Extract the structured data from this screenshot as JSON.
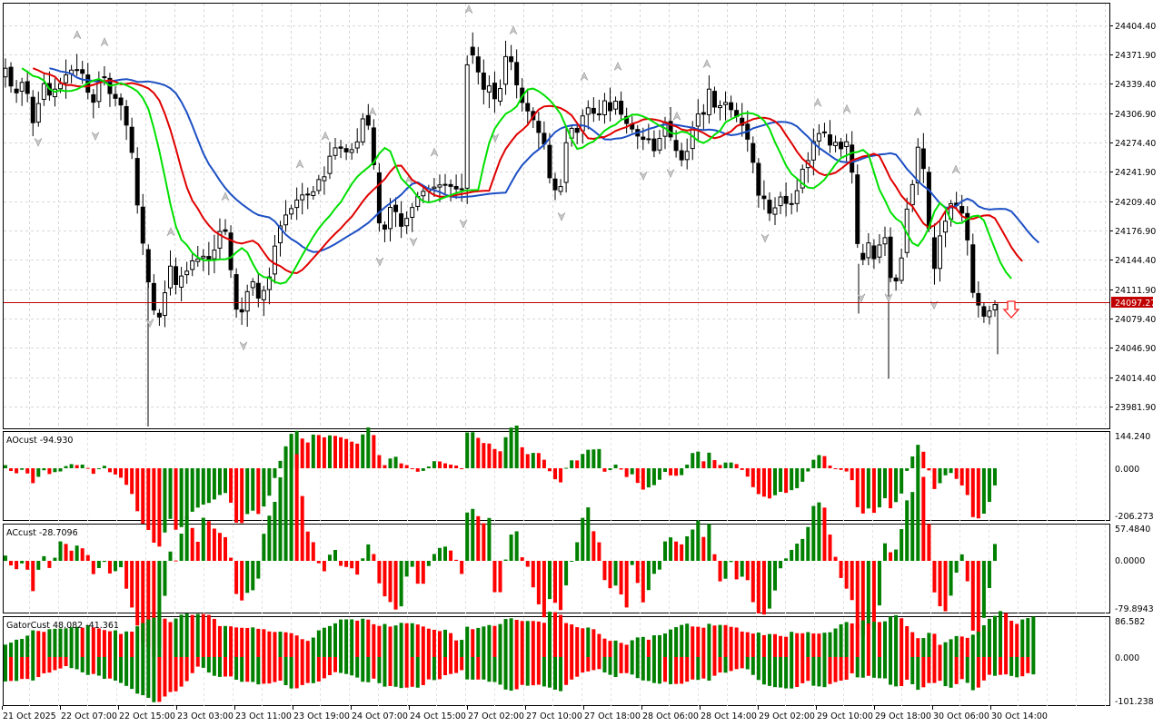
{
  "symbol_price": {
    "current": "24097.27",
    "line_color": "#c00000",
    "badge_color": "#c00000"
  },
  "main": {
    "y_ticks": [
      "24404.40",
      "24371.90",
      "24339.40",
      "24306.90",
      "24274.40",
      "24241.90",
      "24209.40",
      "24176.90",
      "24144.40",
      "24111.90",
      "24079.40",
      "24046.90",
      "24014.40",
      "23981.90"
    ],
    "ylim": [
      23959,
      24427
    ],
    "alligator_colors": {
      "jaw": "#1c4fc4",
      "teeth": "#e00000",
      "lips": "#00e000"
    },
    "signal_arrow": "down-arrow-red"
  },
  "x_labels": [
    "21 Oct 2025",
    "22 Oct 07:00",
    "22 Oct 15:00",
    "23 Oct 03:00",
    "23 Oct 11:00",
    "23 Oct 19:00",
    "24 Oct 07:00",
    "24 Oct 15:00",
    "27 Oct 02:00",
    "27 Oct 10:00",
    "27 Oct 18:00",
    "28 Oct 06:00",
    "28 Oct 14:00",
    "29 Oct 02:00",
    "29 Oct 10:00",
    "29 Oct 18:00",
    "30 Oct 06:00",
    "30 Oct 14:00"
  ],
  "ao": {
    "title": "AOcust -94.930",
    "ticks": [
      "144.240",
      "0.000",
      "-206.273"
    ],
    "ylim": [
      -206.273,
      144.24
    ],
    "up_color": "#008000",
    "down_color": "#ff0000"
  },
  "ac": {
    "title": "ACcust -28.7096",
    "ticks": [
      "57.4840",
      "0.0000",
      "-79.8943"
    ],
    "ylim": [
      -79.8943,
      57.484
    ]
  },
  "gator": {
    "title": "GatorCust 48.082 -41.361",
    "ticks": [
      "86.582",
      "0.000",
      "-101.238"
    ],
    "ylim": [
      -101.238,
      86.582
    ]
  },
  "chart_data": [
    {
      "type": "candlestick",
      "title": "",
      "x_tick_labels": [
        "21 Oct 2025",
        "22 Oct 07:00",
        "22 Oct 15:00",
        "23 Oct 03:00",
        "23 Oct 11:00",
        "23 Oct 19:00",
        "24 Oct 07:00",
        "24 Oct 15:00",
        "27 Oct 02:00",
        "27 Oct 10:00",
        "27 Oct 18:00",
        "28 Oct 06:00",
        "28 Oct 14:00",
        "29 Oct 02:00",
        "29 Oct 10:00",
        "29 Oct 18:00",
        "30 Oct 06:00",
        "30 Oct 14:00"
      ],
      "ylim": [
        23959,
        24427
      ],
      "current_price": 24097.27,
      "price_path": [
        [
          0,
          24346
        ],
        [
          8,
          24360
        ],
        [
          15,
          24320
        ],
        [
          20,
          24335
        ],
        [
          25,
          24342
        ],
        [
          30,
          24330
        ],
        [
          35,
          24295
        ],
        [
          40,
          24300
        ],
        [
          45,
          24338
        ],
        [
          50,
          24340
        ],
        [
          55,
          24325
        ],
        [
          60,
          24333
        ],
        [
          65,
          24337
        ],
        [
          70,
          24345
        ],
        [
          75,
          24353
        ],
        [
          80,
          24355
        ],
        [
          85,
          24355
        ],
        [
          90,
          24353
        ],
        [
          95,
          24338
        ],
        [
          100,
          24315
        ],
        [
          105,
          24322
        ],
        [
          110,
          24349
        ],
        [
          115,
          24347
        ],
        [
          120,
          24330
        ],
        [
          125,
          24322
        ],
        [
          130,
          24325
        ],
        [
          135,
          24310
        ],
        [
          140,
          24290
        ],
        [
          145,
          24265
        ],
        [
          150,
          24210
        ],
        [
          155,
          24190
        ],
        [
          160,
          24130
        ],
        [
          165,
          24115
        ],
        [
          170,
          24085
        ],
        [
          175,
          24080
        ],
        [
          180,
          24095
        ],
        [
          185,
          24140
        ],
        [
          190,
          24135
        ],
        [
          195,
          24110
        ],
        [
          200,
          24128
        ],
        [
          205,
          24130
        ],
        [
          210,
          24145
        ],
        [
          215,
          24140
        ],
        [
          220,
          24150
        ],
        [
          225,
          24148
        ],
        [
          230,
          24145
        ],
        [
          235,
          24152
        ],
        [
          240,
          24170
        ],
        [
          245,
          24185
        ],
        [
          250,
          24170
        ],
        [
          255,
          24125
        ],
        [
          260,
          24090
        ],
        [
          265,
          24085
        ],
        [
          270,
          24093
        ],
        [
          275,
          24130
        ],
        [
          280,
          24115
        ],
        [
          285,
          24100
        ],
        [
          290,
          24110
        ],
        [
          295,
          24118
        ],
        [
          300,
          24145
        ],
        [
          305,
          24175
        ],
        [
          310,
          24185
        ],
        [
          315,
          24195
        ],
        [
          320,
          24200
        ],
        [
          325,
          24210
        ],
        [
          330,
          24212
        ],
        [
          335,
          24220
        ],
        [
          340,
          24215
        ],
        [
          345,
          24220
        ],
        [
          350,
          24235
        ],
        [
          355,
          24225
        ],
        [
          360,
          24255
        ],
        [
          365,
          24262
        ],
        [
          370,
          24270
        ],
        [
          375,
          24268
        ],
        [
          380,
          24265
        ],
        [
          385,
          24260
        ],
        [
          390,
          24275
        ],
        [
          395,
          24275
        ],
        [
          400,
          24305
        ],
        [
          405,
          24295
        ],
        [
          410,
          24270
        ],
        [
          415,
          24195
        ],
        [
          420,
          24175
        ],
        [
          425,
          24180
        ],
        [
          430,
          24205
        ],
        [
          435,
          24200
        ],
        [
          440,
          24180
        ],
        [
          445,
          24185
        ],
        [
          450,
          24195
        ],
        [
          455,
          24205
        ],
        [
          460,
          24215
        ],
        [
          465,
          24220
        ],
        [
          470,
          24222
        ],
        [
          475,
          24225
        ],
        [
          480,
          24225
        ],
        [
          485,
          24228
        ],
        [
          490,
          24228
        ],
        [
          495,
          24226
        ],
        [
          500,
          24225
        ],
        [
          505,
          24220
        ],
        [
          510,
          24225
        ],
        [
          515,
          24386
        ],
        [
          520,
          24372
        ],
        [
          525,
          24355
        ],
        [
          530,
          24345
        ],
        [
          535,
          24320
        ],
        [
          540,
          24345
        ],
        [
          545,
          24320
        ],
        [
          550,
          24330
        ],
        [
          555,
          24370
        ],
        [
          560,
          24368
        ],
        [
          565,
          24360
        ],
        [
          570,
          24330
        ],
        [
          575,
          24318
        ],
        [
          580,
          24310
        ],
        [
          585,
          24305
        ],
        [
          590,
          24290
        ],
        [
          595,
          24282
        ],
        [
          600,
          24270
        ],
        [
          605,
          24235
        ],
        [
          610,
          24225
        ],
        [
          615,
          24210
        ],
        [
          620,
          24248
        ],
        [
          625,
          24290
        ],
        [
          630,
          24290
        ],
        [
          635,
          24285
        ],
        [
          640,
          24300
        ],
        [
          645,
          24315
        ],
        [
          650,
          24310
        ],
        [
          655,
          24305
        ],
        [
          660,
          24305
        ],
        [
          665,
          24322
        ],
        [
          670,
          24305
        ],
        [
          675,
          24320
        ],
        [
          680,
          24320
        ],
        [
          685,
          24300
        ],
        [
          690,
          24295
        ],
        [
          695,
          24290
        ],
        [
          700,
          24285
        ],
        [
          705,
          24275
        ],
        [
          710,
          24280
        ],
        [
          715,
          24278
        ],
        [
          720,
          24265
        ],
        [
          725,
          24275
        ],
        [
          730,
          24295
        ],
        [
          735,
          24300
        ],
        [
          740,
          24268
        ],
        [
          745,
          24265
        ],
        [
          750,
          24255
        ],
        [
          755,
          24258
        ],
        [
          760,
          24285
        ],
        [
          765,
          24298
        ],
        [
          770,
          24310
        ],
        [
          775,
          24305
        ],
        [
          780,
          24335
        ],
        [
          785,
          24315
        ],
        [
          790,
          24310
        ],
        [
          795,
          24320
        ],
        [
          800,
          24318
        ],
        [
          805,
          24310
        ],
        [
          810,
          24305
        ],
        [
          815,
          24290
        ],
        [
          820,
          24300
        ],
        [
          825,
          24260
        ],
        [
          830,
          24250
        ],
        [
          835,
          24215
        ],
        [
          840,
          24215
        ],
        [
          845,
          24200
        ],
        [
          850,
          24190
        ],
        [
          855,
          24210
        ],
        [
          860,
          24215
        ],
        [
          865,
          24207
        ],
        [
          870,
          24205
        ],
        [
          875,
          24210
        ],
        [
          880,
          24235
        ],
        [
          885,
          24250
        ],
        [
          890,
          24255
        ],
        [
          895,
          24275
        ],
        [
          900,
          24280
        ],
        [
          905,
          24295
        ],
        [
          910,
          24275
        ],
        [
          915,
          24270
        ],
        [
          920,
          24275
        ],
        [
          925,
          24265
        ],
        [
          930,
          24285
        ],
        [
          935,
          24255
        ],
        [
          940,
          24230
        ],
        [
          945,
          24140
        ],
        [
          950,
          24145
        ],
        [
          955,
          24168
        ],
        [
          960,
          24140
        ],
        [
          965,
          24155
        ],
        [
          970,
          24165
        ],
        [
          975,
          24170
        ],
        [
          980,
          24125
        ],
        [
          985,
          24120
        ],
        [
          990,
          24125
        ],
        [
          995,
          24175
        ],
        [
          1000,
          24215
        ],
        [
          1005,
          24230
        ],
        [
          1010,
          24270
        ],
        [
          1015,
          24255
        ],
        [
          1020,
          24220
        ],
        [
          1025,
          24135
        ],
        [
          1030,
          24135
        ],
        [
          1035,
          24175
        ],
        [
          1040,
          24185
        ],
        [
          1045,
          24205
        ],
        [
          1050,
          24210
        ],
        [
          1055,
          24200
        ],
        [
          1060,
          24195
        ],
        [
          1065,
          24165
        ],
        [
          1070,
          24110
        ],
        [
          1075,
          24100
        ],
        [
          1080,
          24085
        ],
        [
          1085,
          24080
        ],
        [
          1090,
          24090
        ],
        [
          1095,
          24095
        ],
        [
          1100,
          24097
        ]
      ]
    },
    {
      "type": "bar",
      "title": "AOcust -94.930",
      "ylim": [
        -206.273,
        144.24
      ],
      "current": -94.93
    },
    {
      "type": "bar",
      "title": "ACcust -28.7096",
      "ylim": [
        -79.8943,
        57.484
      ],
      "current": -28.7096
    },
    {
      "type": "bar",
      "title": "GatorCust 48.082 -41.361",
      "ylim": [
        -101.238,
        86.582
      ],
      "upper_current": 48.082,
      "lower_current": -41.361
    }
  ]
}
